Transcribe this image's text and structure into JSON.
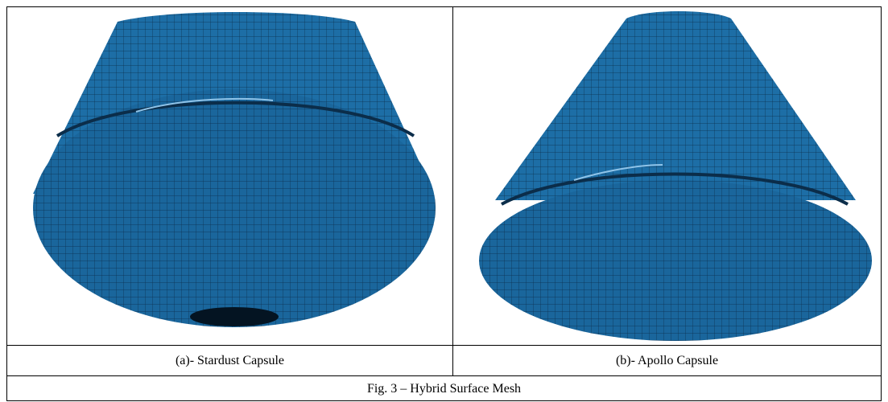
{
  "panels": [
    {
      "caption": "(a)- Stardust Capsule"
    },
    {
      "caption": "(b)- Apollo Capsule"
    }
  ],
  "figure_caption": "Fig. 3 – Hybrid Surface Mesh"
}
